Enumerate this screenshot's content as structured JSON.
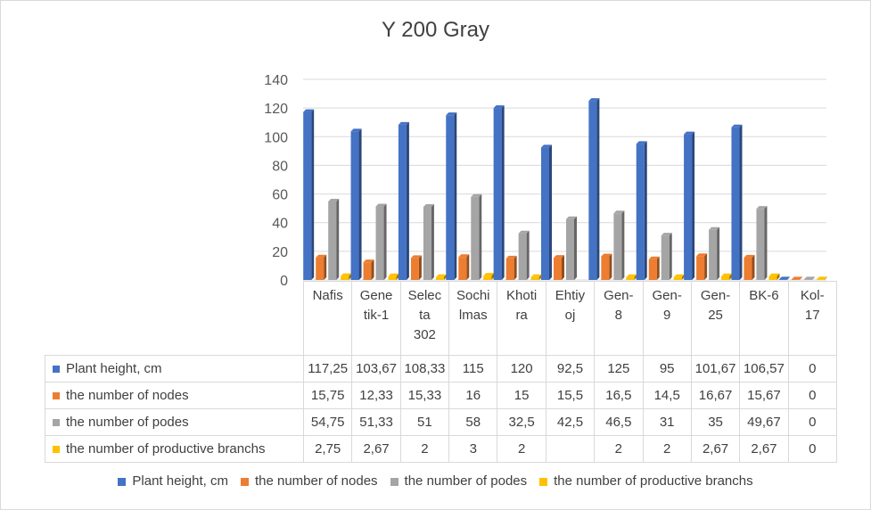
{
  "chart_data": {
    "type": "bar",
    "title": "Y 200 Gray",
    "categories": [
      "Nafis",
      "Genetik-1",
      "Selecta 302",
      "Sochilmas",
      "Khotira",
      "Ehtiyoj",
      "Gen-8",
      "Gen-9",
      "Gen-25",
      "BK-6",
      "Kol-17"
    ],
    "category_lines": [
      [
        "Nafis"
      ],
      [
        "Gene",
        "tik-1"
      ],
      [
        "Selec",
        "ta",
        "302"
      ],
      [
        "Sochi",
        "lmas"
      ],
      [
        "Khoti",
        "ra"
      ],
      [
        "Ehtiy",
        "oj"
      ],
      [
        "Gen-",
        "8"
      ],
      [
        "Gen-",
        "9"
      ],
      [
        "Gen-",
        "25"
      ],
      [
        "BK-6"
      ],
      [
        "Kol-",
        "17"
      ]
    ],
    "ylim": [
      0,
      140
    ],
    "yticks": [
      "0",
      "20",
      "40",
      "60",
      "80",
      "100",
      "120",
      "140"
    ],
    "grid": true,
    "legend_position": "bottom",
    "series": [
      {
        "name": "Plant height, cm",
        "color": "#4472c4",
        "values": [
          117.25,
          103.67,
          108.33,
          115,
          120,
          92.5,
          125,
          95,
          101.67,
          106.57,
          0
        ],
        "labels": [
          "117,25",
          "103,67",
          "108,33",
          "115",
          "120",
          "92,5",
          "125",
          "95",
          "101,67",
          "106,57",
          "0"
        ]
      },
      {
        "name": "the number of nodes",
        "color": "#ed7d31",
        "values": [
          15.75,
          12.33,
          15.33,
          16,
          15,
          15.5,
          16.5,
          14.5,
          16.67,
          15.67,
          0
        ],
        "labels": [
          "15,75",
          "12,33",
          "15,33",
          "16",
          "15",
          "15,5",
          "16,5",
          "14,5",
          "16,67",
          "15,67",
          "0"
        ]
      },
      {
        "name": "the number of podes",
        "color": "#a5a5a5",
        "values": [
          54.75,
          51.33,
          51,
          58,
          32.5,
          42.5,
          46.5,
          31,
          35,
          49.67,
          0
        ],
        "labels": [
          "54,75",
          "51,33",
          "51",
          "58",
          "32,5",
          "42,5",
          "46,5",
          "31",
          "35",
          "49,67",
          "0"
        ]
      },
      {
        "name": "the number of productive branchs",
        "color": "#ffc000",
        "values": [
          2.75,
          2.67,
          2,
          3,
          2,
          null,
          2,
          2,
          2.67,
          2.67,
          0
        ],
        "labels": [
          "2,75",
          "2,67",
          "2",
          "3",
          "2",
          "",
          "2",
          "2",
          "2,67",
          "2,67",
          "0"
        ]
      }
    ]
  }
}
